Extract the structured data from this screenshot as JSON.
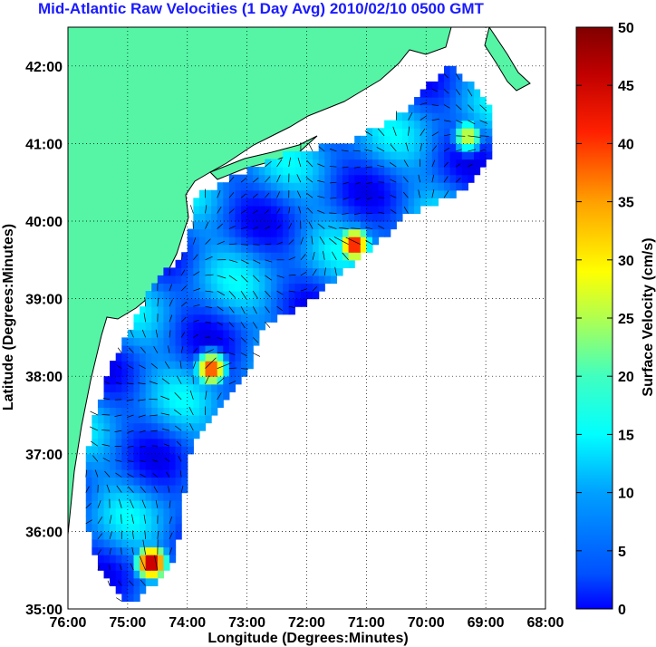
{
  "chart_data": {
    "type": "heatmap",
    "title": "Mid-Atlantic Raw Velocities (1 Day Avg) 2010/02/10 0500 GMT",
    "xlabel": "Longitude (Degrees:Minutes)",
    "ylabel": "Latitude (Degrees:Minutes)",
    "colorbar_label": "Surface Velocity (cm/s)",
    "x_ticks": [
      "76:00",
      "75:00",
      "74:00",
      "73:00",
      "72:00",
      "71:00",
      "70:00",
      "69:00",
      "68:00"
    ],
    "y_ticks": [
      "35:00",
      "36:00",
      "37:00",
      "38:00",
      "39:00",
      "40:00",
      "41:00",
      "42:00"
    ],
    "colorbar_ticks": [
      "0",
      "5",
      "10",
      "15",
      "20",
      "25",
      "30",
      "35",
      "40",
      "45",
      "50"
    ],
    "xlim": [
      -76,
      -68
    ],
    "ylim": [
      35,
      42.5
    ],
    "clim": [
      0,
      50
    ],
    "grid": true,
    "colormap": "jet",
    "colors": {
      "land": "#55f5a5",
      "ocean_background": "#ffffff",
      "title": "#1a1aff",
      "coast": "#000000",
      "bathymetry": "#999999"
    },
    "hotspots": [
      {
        "lon": -71.2,
        "lat": 39.7,
        "speed_cm_s": 45
      },
      {
        "lon": -73.6,
        "lat": 38.1,
        "speed_cm_s": 42
      },
      {
        "lon": -74.6,
        "lat": 35.6,
        "speed_cm_s": 50
      },
      {
        "lon": -69.3,
        "lat": 41.1,
        "speed_cm_s": 30
      }
    ]
  }
}
